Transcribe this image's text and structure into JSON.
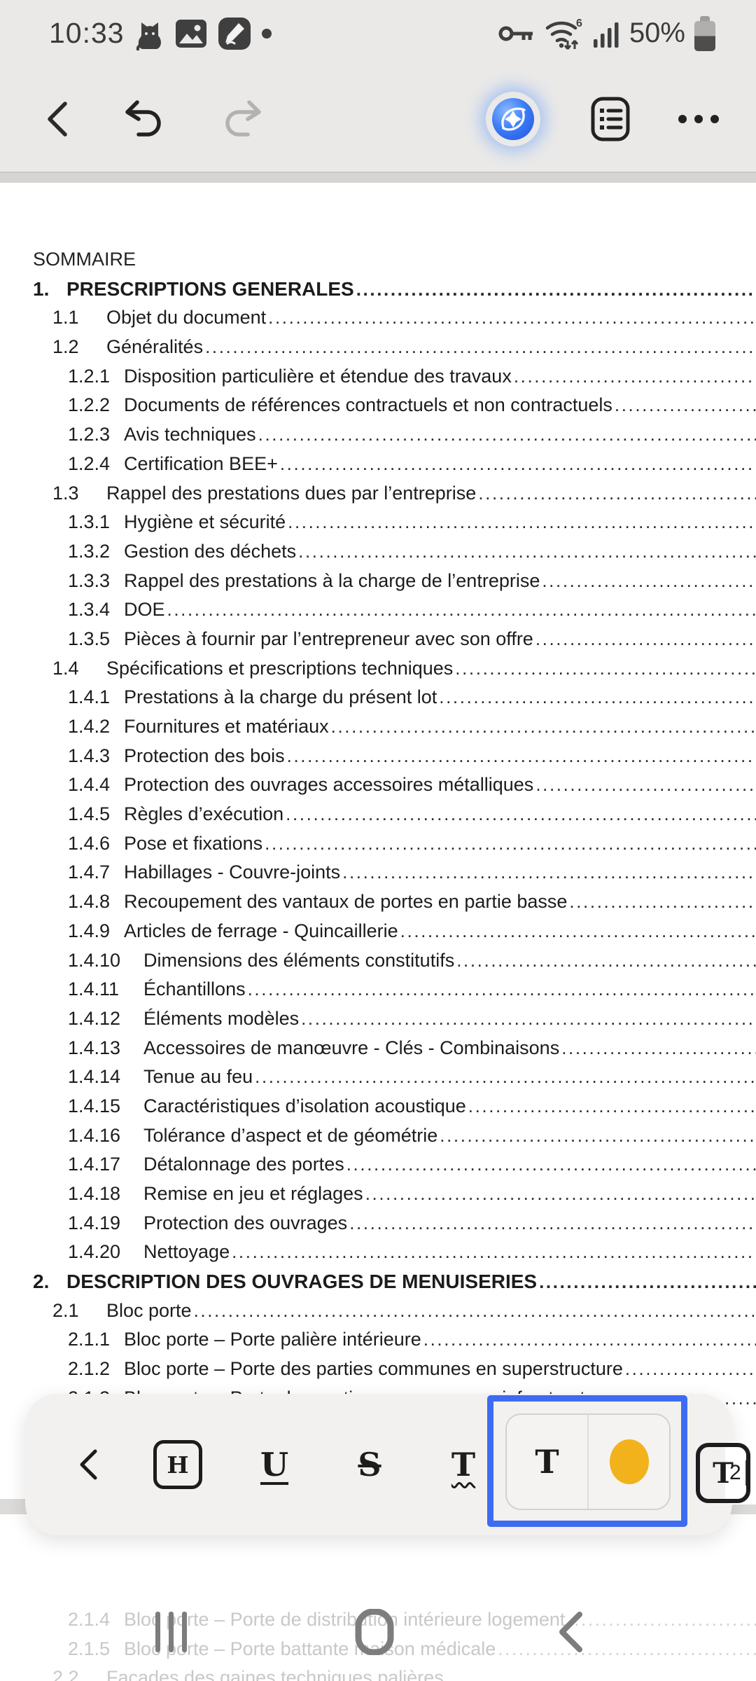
{
  "status_bar": {
    "time": "10:33",
    "battery": "50%",
    "left_icons": [
      "cat-notification-icon",
      "gallery-notification-icon",
      "notes-pen-notification-icon",
      "more-notifications-dot"
    ],
    "right_icons": [
      "vpn-key-icon",
      "wifi6-icon",
      "signal-strength-icon",
      "battery-icon"
    ]
  },
  "header": {
    "icons": [
      "back-icon",
      "undo-icon",
      "redo-icon",
      "ai-assist-icon",
      "outline-list-icon",
      "more-options-icon"
    ]
  },
  "document": {
    "title": "SOMMAIRE",
    "toc": [
      {
        "num": "1.",
        "label": "PRESCRIPTIONS GENERALES",
        "level": 1
      },
      {
        "num": "1.1",
        "label": "Objet du document",
        "level": 2
      },
      {
        "num": "1.2",
        "label": "Généralités",
        "level": 2
      },
      {
        "num": "1.2.1",
        "label": "Disposition particulière et étendue des travaux",
        "level": 3
      },
      {
        "num": "1.2.2",
        "label": "Documents de références contractuels et non contractuels",
        "level": 3
      },
      {
        "num": "1.2.3",
        "label": "Avis techniques",
        "level": 3
      },
      {
        "num": "1.2.4",
        "label": "Certification BEE+",
        "level": 3
      },
      {
        "num": "1.3",
        "label": "Rappel des prestations dues par l’entreprise",
        "level": 2
      },
      {
        "num": "1.3.1",
        "label": "Hygiène et sécurité",
        "level": 3
      },
      {
        "num": "1.3.2",
        "label": "Gestion des déchets",
        "level": 3
      },
      {
        "num": "1.3.3",
        "label": "Rappel des prestations à la charge de l’entreprise",
        "level": 3
      },
      {
        "num": "1.3.4",
        "label": "DOE",
        "level": 3
      },
      {
        "num": "1.3.5",
        "label": "Pièces à fournir par l’entrepreneur avec son offre",
        "level": 3
      },
      {
        "num": "1.4",
        "label": "Spécifications et prescriptions techniques",
        "level": 2
      },
      {
        "num": "1.4.1",
        "label": "Prestations à la charge du présent lot",
        "level": 3
      },
      {
        "num": "1.4.2",
        "label": "Fournitures et matériaux",
        "level": 3
      },
      {
        "num": "1.4.3",
        "label": "Protection des bois",
        "level": 3
      },
      {
        "num": "1.4.4",
        "label": "Protection des ouvrages accessoires métalliques",
        "level": 3
      },
      {
        "num": "1.4.5",
        "label": "Règles d’exécution",
        "level": 3
      },
      {
        "num": "1.4.6",
        "label": "Pose et fixations",
        "level": 3
      },
      {
        "num": "1.4.7",
        "label": "Habillages - Couvre-joints",
        "level": 3
      },
      {
        "num": "1.4.8",
        "label": "Recoupement des vantaux de portes en partie basse",
        "level": 3
      },
      {
        "num": "1.4.9",
        "label": "Articles de ferrage - Quincaillerie",
        "level": 3
      },
      {
        "num": "1.4.10",
        "label": "Dimensions des éléments constitutifs",
        "level": 3
      },
      {
        "num": "1.4.11",
        "label": "Échantillons",
        "level": 3
      },
      {
        "num": "1.4.12",
        "label": "Éléments modèles",
        "level": 3
      },
      {
        "num": "1.4.13",
        "label": "Accessoires de manœuvre - Clés - Combinaisons",
        "level": 3
      },
      {
        "num": "1.4.14",
        "label": "Tenue au feu",
        "level": 3
      },
      {
        "num": "1.4.15",
        "label": "Caractéristiques d’isolation acoustique",
        "level": 3
      },
      {
        "num": "1.4.16",
        "label": "Tolérance d’aspect et de géométrie",
        "level": 3
      },
      {
        "num": "1.4.17",
        "label": "Détalonnage des portes",
        "level": 3
      },
      {
        "num": "1.4.18",
        "label": "Remise en jeu et réglages",
        "level": 3
      },
      {
        "num": "1.4.19",
        "label": "Protection des ouvrages",
        "level": 3
      },
      {
        "num": "1.4.20",
        "label": "Nettoyage",
        "level": 3
      },
      {
        "num": "2.",
        "label": "DESCRIPTION DES OUVRAGES DE MENUISERIES",
        "level": 1
      },
      {
        "num": "2.1",
        "label": "Bloc porte",
        "level": 2
      },
      {
        "num": "2.1.1",
        "label": "Bloc porte – Porte palière intérieure",
        "level": 3
      },
      {
        "num": "2.1.2",
        "label": "Bloc porte – Porte des parties communes en superstructure",
        "level": 3
      },
      {
        "num": "2.1.3",
        "label": "Bloc porte – Porte des parties communes en infrastructure",
        "level": 3
      }
    ],
    "toc_continued": [
      {
        "num": "2.1.4",
        "label": "Bloc porte – Porte de distribution intérieure logement",
        "level": 3
      },
      {
        "num": "2.1.5",
        "label": "Bloc porte – Porte battante maison médicale",
        "level": 3
      },
      {
        "num": "2.2",
        "label": "Façades des gaines techniques palières",
        "level": 2
      }
    ]
  },
  "format_toolbar": {
    "icons": [
      "back-icon",
      "header-style-icon",
      "underline-icon",
      "strikethrough-icon",
      "text-squiggle-icon",
      "text-color-group",
      "text-size-icon"
    ],
    "font_size_value": "2",
    "highlight_color": "#f2b21c",
    "selection_border_color": "#3d6bf2"
  },
  "nav_bar": {
    "icons": [
      "recents-icon",
      "home-icon",
      "back-icon"
    ]
  }
}
